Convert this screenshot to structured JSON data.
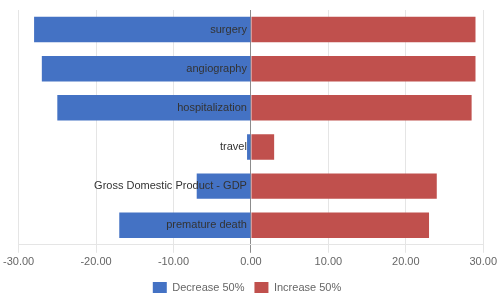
{
  "chart_data": {
    "type": "bar",
    "orientation": "horizontal",
    "categories": [
      "surgery",
      "angiography",
      "hospitalization",
      "travel",
      "Gross Domestic Product - GDP",
      "premature death"
    ],
    "series": [
      {
        "name": "Decrease 50%",
        "color": "#4472C4",
        "values": [
          -28.0,
          -27.0,
          -25.0,
          -0.5,
          -7.0,
          -17.0
        ]
      },
      {
        "name": "Increase 50%",
        "color": "#C0504D",
        "values": [
          29.0,
          29.0,
          28.5,
          3.0,
          24.0,
          23.0
        ]
      }
    ],
    "xlim": [
      -30,
      30
    ],
    "xticks": [
      {
        "value": -30,
        "label": "-30.00"
      },
      {
        "value": -20,
        "label": "-20.00"
      },
      {
        "value": -10,
        "label": "-10.00"
      },
      {
        "value": 0,
        "label": "0.00"
      },
      {
        "value": 10,
        "label": "10.00"
      },
      {
        "value": 20,
        "label": "20.00"
      },
      {
        "value": 30,
        "label": "30.00"
      }
    ],
    "grid": true,
    "legend": "bottom",
    "tick_labels": "x"
  }
}
